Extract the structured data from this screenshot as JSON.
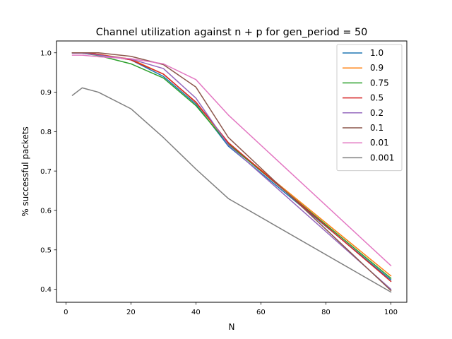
{
  "chart_data": {
    "type": "line",
    "title": "Channel utilization against n + p for gen_period = 50",
    "xlabel": "N",
    "ylabel": "% successful packets",
    "xlim": [
      -2.9,
      104.9
    ],
    "ylim": [
      0.367,
      1.03
    ],
    "xticks": [
      0,
      20,
      40,
      60,
      80,
      100
    ],
    "yticks": [
      0.4,
      0.5,
      0.6,
      0.7,
      0.8,
      0.9,
      1.0
    ],
    "xtick_labels": [
      "0",
      "20",
      "40",
      "60",
      "80",
      "100"
    ],
    "ytick_labels": [
      "0.4",
      "0.5",
      "0.6",
      "0.7",
      "0.8",
      "0.9",
      "1.0"
    ],
    "grid": false,
    "legend_position": "top-right",
    "x": [
      2,
      5,
      10,
      20,
      30,
      40,
      50,
      100
    ],
    "series": [
      {
        "name": "1.0",
        "color": "#1f77b4",
        "values": [
          1.0,
          1.0,
          0.996,
          0.982,
          0.94,
          0.87,
          0.763,
          0.424
        ]
      },
      {
        "name": "0.9",
        "color": "#ff7f0e",
        "values": [
          1.0,
          1.0,
          0.996,
          0.984,
          0.946,
          0.874,
          0.77,
          0.434
        ]
      },
      {
        "name": "0.75",
        "color": "#2ca02c",
        "values": [
          1.0,
          0.999,
          0.993,
          0.972,
          0.936,
          0.866,
          0.768,
          0.428
        ]
      },
      {
        "name": "0.5",
        "color": "#d62728",
        "values": [
          1.0,
          1.0,
          0.996,
          0.982,
          0.946,
          0.875,
          0.772,
          0.42
        ]
      },
      {
        "name": "0.2",
        "color": "#9467bd",
        "values": [
          0.999,
          0.999,
          0.994,
          0.984,
          0.96,
          0.885,
          0.766,
          0.4
        ]
      },
      {
        "name": "0.1",
        "color": "#8c564b",
        "values": [
          1.0,
          1.0,
          1.0,
          0.991,
          0.97,
          0.913,
          0.785,
          0.397
        ]
      },
      {
        "name": "0.01",
        "color": "#e377c2",
        "values": [
          0.994,
          0.994,
          0.99,
          0.985,
          0.972,
          0.932,
          0.842,
          0.46
        ]
      },
      {
        "name": "0.001",
        "color": "#7f7f7f",
        "values": [
          0.892,
          0.911,
          0.9,
          0.858,
          0.785,
          0.705,
          0.63,
          0.393
        ]
      }
    ]
  }
}
